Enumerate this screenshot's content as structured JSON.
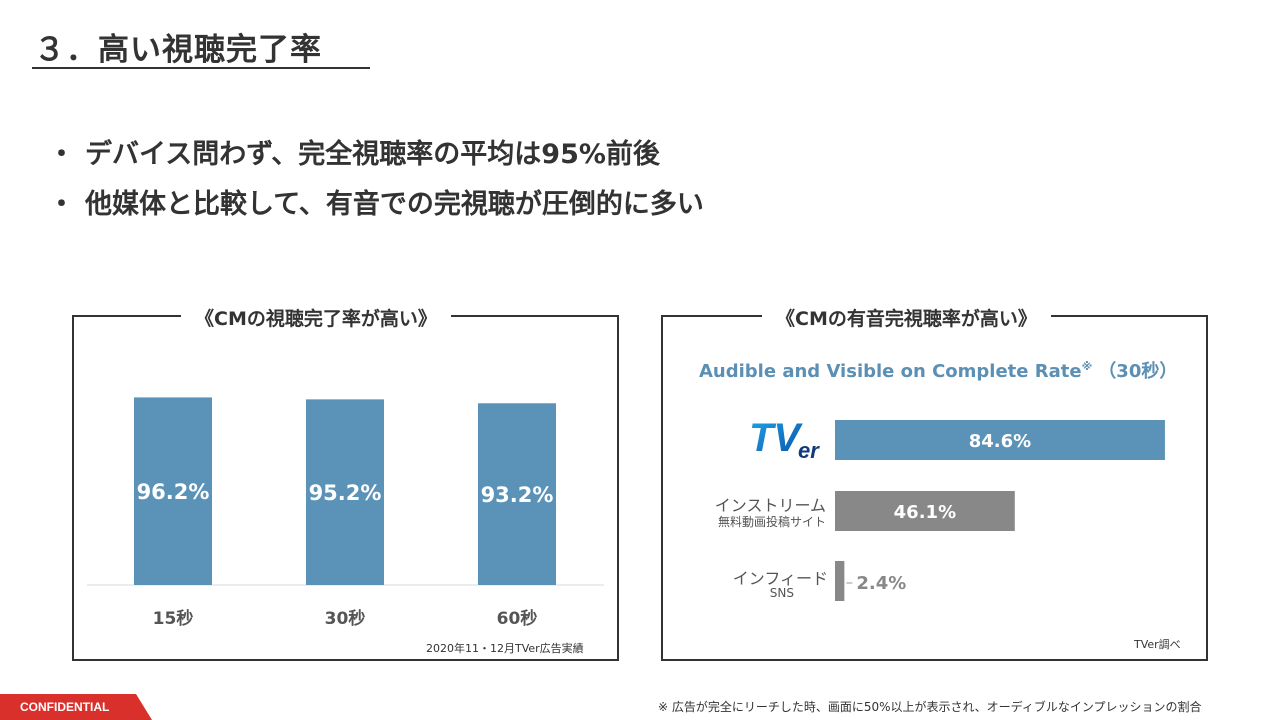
{
  "title": "３．高い視聴完了率",
  "bullets": [
    "デバイス問わず、完全視聴率の平均は95%前後",
    "他媒体と比較して、有音での完視聴が圧倒的に多い"
  ],
  "bullet_mark": "・",
  "left_panel": {
    "title": "《CMの視聴完了率が高い》",
    "source": "2020年11・12月TVer広告実績"
  },
  "right_panel": {
    "title": "《CMの有音完視聴率が高い》",
    "subtitle": "Audible and Visible on Complete Rate",
    "subtitle_mark": "※",
    "subtitle_suffix": "（30秒）",
    "source": "TVer調べ",
    "rows": [
      {
        "label_logo": "TVer",
        "label_main": "",
        "label_sub": ""
      },
      {
        "label_main": "インストリーム",
        "label_sub": "無料動画投稿サイト"
      },
      {
        "label_main": "インフィード",
        "label_sub": "SNS"
      }
    ]
  },
  "chart_data": [
    {
      "type": "bar",
      "categories": [
        "15秒",
        "30秒",
        "60秒"
      ],
      "values": [
        96.2,
        95.2,
        93.2
      ],
      "value_labels": [
        "96.2%",
        "95.2%",
        "93.2%"
      ],
      "ylim": [
        0,
        100
      ],
      "color": "#5b93b8"
    },
    {
      "type": "bar",
      "orientation": "horizontal",
      "categories": [
        "TVer",
        "インストリーム",
        "インフィード"
      ],
      "values": [
        84.6,
        46.1,
        2.4
      ],
      "value_labels": [
        "84.6%",
        "46.1%",
        "2.4%"
      ],
      "xlim": [
        0,
        100
      ],
      "colors": [
        "#5b93b8",
        "#888888",
        "#888888"
      ]
    }
  ],
  "footer": {
    "confidential": "CONFIDENTIAL",
    "footnote": "※ 広告が完全にリーチした時、画面に50%以上が表示され、オーディブルなインプレッションの割合"
  }
}
